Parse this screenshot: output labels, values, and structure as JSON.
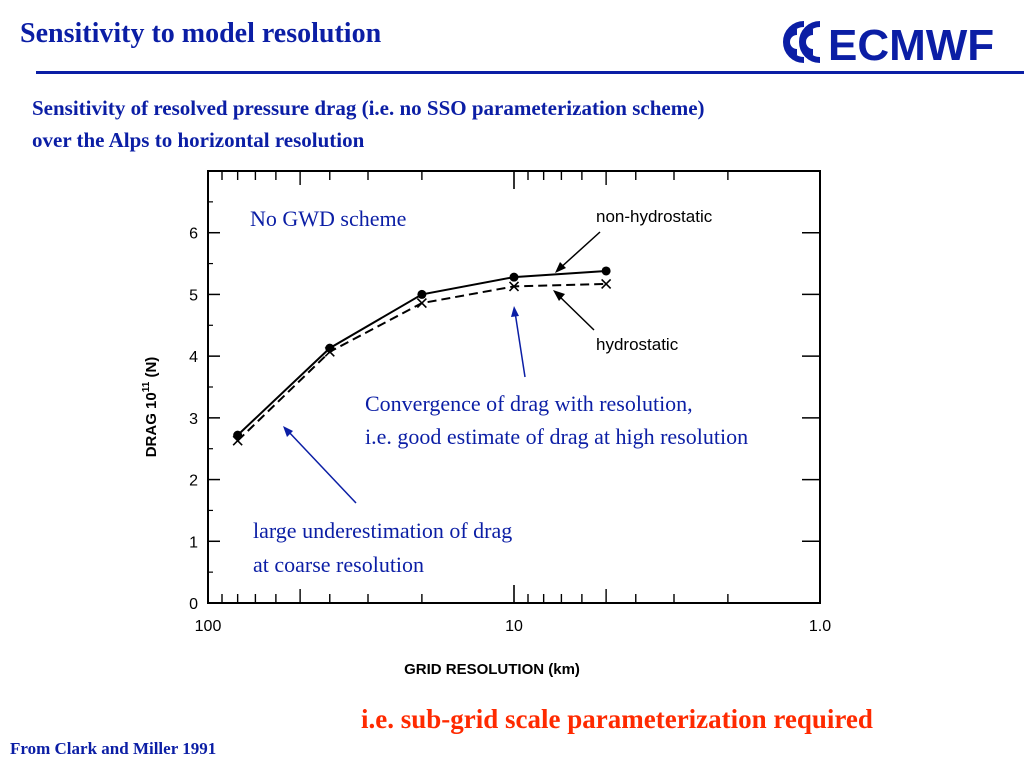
{
  "slide": {
    "title": "Sensitivity to model resolution",
    "subtitle_line1": "Sensitivity of resolved pressure drag (i.e. no SSO parameterization scheme)",
    "subtitle_line2": "over the Alps to horizontal resolution",
    "logo_text": "ECMWF",
    "conclusion": "i.e. sub-grid scale parameterization required",
    "source": "From Clark and Miller 1991"
  },
  "colors": {
    "accent": "#0b1ea5",
    "highlight": "#ff2a00",
    "plot_ink": "#000000"
  },
  "annotations": {
    "scheme_note": "No GWD scheme",
    "convergence_line1": "Convergence of drag with resolution,",
    "convergence_line2": "i.e. good estimate of drag at high resolution",
    "underestimation_line1": "large underestimation of drag",
    "underestimation_line2": "at coarse resolution"
  },
  "chart_data": {
    "type": "line",
    "xlabel": "GRID RESOLUTION (km)",
    "ylabel_main": "DRAG 10",
    "ylabel_exp": "11",
    "ylabel_unit": " (N)",
    "x_scale": "log",
    "x_reversed": true,
    "xlim": [
      100,
      1.0
    ],
    "ylim": [
      0,
      7
    ],
    "x_ticks": [
      100,
      10,
      1.0
    ],
    "x_tick_labels": [
      "100",
      "10",
      "1.0"
    ],
    "y_ticks": [
      0,
      1,
      2,
      3,
      4,
      5,
      6
    ],
    "y_tick_labels": [
      "0",
      "1",
      "2",
      "3",
      "4",
      "5",
      "6"
    ],
    "series": [
      {
        "name": "non-hydrostatic",
        "line": "solid",
        "marker": "dot",
        "x": [
          80,
          40,
          20,
          10,
          5
        ],
        "y": [
          2.72,
          4.13,
          5.0,
          5.28,
          5.38
        ]
      },
      {
        "name": "hydrostatic",
        "line": "dashed",
        "marker": "cross",
        "x": [
          80,
          40,
          20,
          10,
          5
        ],
        "y": [
          2.63,
          4.07,
          4.86,
          5.13,
          5.17
        ]
      }
    ]
  }
}
